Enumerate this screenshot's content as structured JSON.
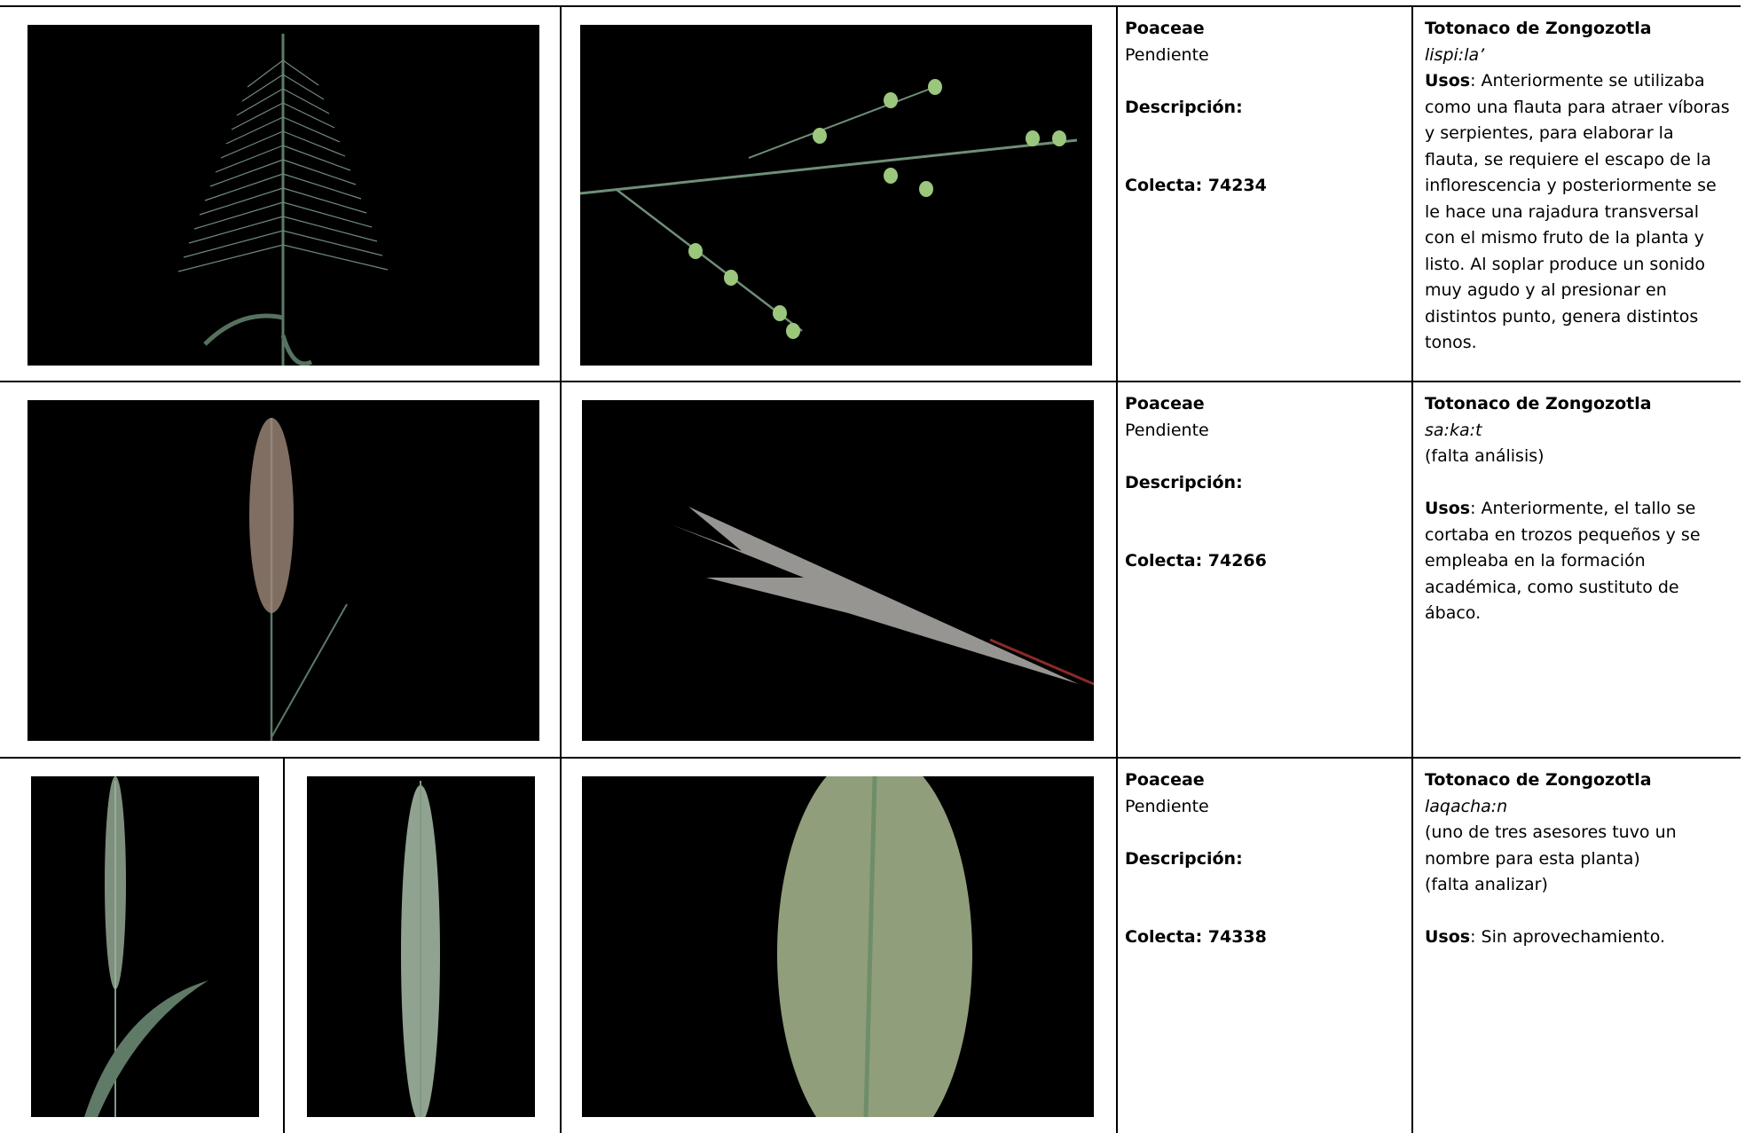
{
  "rows": [
    {
      "family": "Poaceae",
      "status": "Pendiente",
      "description_label": "Descripción:",
      "collection": "Colecta: 74234",
      "language": "Totonaco de Zongozotla",
      "name": "lispi:la’",
      "uses_label": "Usos",
      "uses": ": Anteriormente se utilizaba como una flauta para atraer víboras y serpientes, para elaborar la flauta, se requiere el escapo de la inflorescencia y posteriormente se le hace una rajadura transversal con el mismo fruto de la planta y listo. Al soplar produce un sonido muy agudo y al presionar en distintos punto, genera distintos tonos."
    },
    {
      "family": "Poaceae",
      "status": "Pendiente",
      "description_label": "Descripción:",
      "collection": "Colecta: 74266",
      "language": "Totonaco de Zongozotla",
      "name": "sa:ka:t",
      "notes": [
        "(falta análisis)"
      ],
      "uses_label": "Usos",
      "uses": ": Anteriormente, el tallo se cortaba en trozos pequeños y se empleaba en la formación académica, como sustituto de ábaco."
    },
    {
      "family": "Poaceae",
      "status": "Pendiente",
      "description_label": "Descripción:",
      "collection": "Colecta: 74338",
      "language": "Totonaco de Zongozotla",
      "name": "laqacha:n",
      "notes": [
        "(uno de tres asesores tuvo un nombre para esta planta)",
        "(falta analizar)"
      ],
      "uses_label": "Usos",
      "uses": ": Sin aprovechamiento."
    }
  ]
}
